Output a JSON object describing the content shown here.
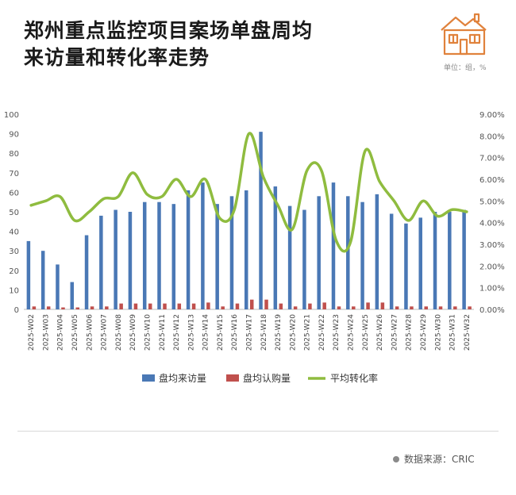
{
  "header": {
    "title_line1": "郑州重点监控项目案场单盘周均",
    "title_line2": "来访量和转化率走势",
    "unit": "单位：组，%"
  },
  "footer": {
    "source": "数据来源：CRIC"
  },
  "icons": {
    "house": "house-icon",
    "source_dot": "dot-icon"
  },
  "colors": {
    "visits": "#4a78b5",
    "purchases": "#c0504d",
    "rate": "#8fbc3f"
  },
  "chart_data": {
    "type": "bar",
    "categories": [
      "2025-W02",
      "2025-W03",
      "2025-W04",
      "2025-W05",
      "2025-W06",
      "2025-W07",
      "2025-W08",
      "2025-W09",
      "2025-W10",
      "2025-W11",
      "2025-W12",
      "2025-W13",
      "2025-W14",
      "2025-W15",
      "2025-W16",
      "2025-W17",
      "2025-W18",
      "2025-W19",
      "2025-W20",
      "2025-W21",
      "2025-W22",
      "2025-W23",
      "2025-W24",
      "2025-W25",
      "2025-W26",
      "2025-W27",
      "2025-W28",
      "2025-W29",
      "2025-W30",
      "2025-W31",
      "2025-W32"
    ],
    "series": [
      {
        "name": "盘均来访量",
        "axis": "left",
        "kind": "bar",
        "values": [
          35,
          30,
          23,
          14,
          38,
          48,
          51,
          50,
          55,
          55,
          54,
          61,
          65,
          54,
          58,
          61,
          91,
          63,
          53,
          51,
          58,
          65,
          58,
          55,
          59,
          49,
          44,
          47,
          50,
          50,
          51
        ]
      },
      {
        "name": "盘均认购量",
        "axis": "left",
        "kind": "bar",
        "values": [
          1.5,
          1.5,
          1,
          1,
          1.5,
          1.5,
          3,
          3,
          3,
          3,
          3,
          3,
          3.5,
          1.5,
          3,
          5,
          5,
          3,
          1.5,
          3,
          3.5,
          1.5,
          1.5,
          3.5,
          3.5,
          1.5,
          1.5,
          1.5,
          1.5,
          1.5,
          1.5
        ]
      },
      {
        "name": "平均转化率",
        "axis": "right",
        "kind": "line",
        "values": [
          4.8,
          5.0,
          5.2,
          4.1,
          4.5,
          5.1,
          5.2,
          6.3,
          5.3,
          5.2,
          6.0,
          5.2,
          6.0,
          4.2,
          4.6,
          8.1,
          6.1,
          4.8,
          3.7,
          6.4,
          6.4,
          3.2,
          3.1,
          7.3,
          5.9,
          5.0,
          4.1,
          5.0,
          4.3,
          4.6,
          4.5
        ]
      }
    ],
    "yleft": {
      "min": 0,
      "max": 100,
      "ticks": [
        "0",
        "10",
        "20",
        "30",
        "40",
        "50",
        "60",
        "70",
        "80",
        "90",
        "100"
      ]
    },
    "yright": {
      "min": 0,
      "max": 9,
      "ticks": [
        "0.00%",
        "1.00%",
        "2.00%",
        "3.00%",
        "4.00%",
        "5.00%",
        "6.00%",
        "7.00%",
        "8.00%",
        "9.00%"
      ]
    },
    "legend_position": "bottom",
    "grid": false
  }
}
